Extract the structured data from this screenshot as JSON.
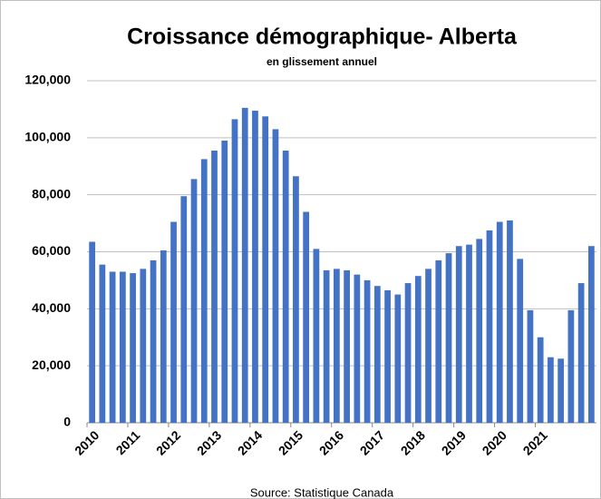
{
  "chart_data": {
    "type": "bar",
    "title": "Croissance démographique- Alberta",
    "subtitle": "en glissement annuel",
    "source": "Source: Statistique Canada",
    "categories": [
      "2010",
      null,
      null,
      null,
      "2011",
      null,
      null,
      null,
      "2012",
      null,
      null,
      null,
      "2013",
      null,
      null,
      null,
      "2014",
      null,
      null,
      null,
      "2015",
      null,
      null,
      null,
      "2016",
      null,
      null,
      null,
      "2017",
      null,
      null,
      null,
      "2018",
      null,
      null,
      null,
      "2019",
      null,
      null,
      null,
      "2020",
      null,
      null,
      null,
      "2021",
      null,
      null,
      null,
      null,
      null
    ],
    "values": [
      63500,
      55500,
      53000,
      53000,
      52500,
      54000,
      57000,
      60500,
      70500,
      79500,
      85500,
      92500,
      95500,
      99000,
      106500,
      110500,
      109500,
      107500,
      103000,
      95500,
      86500,
      74000,
      61000,
      53500,
      54000,
      53500,
      52000,
      50000,
      48000,
      46500,
      45000,
      49000,
      51500,
      54000,
      57000,
      59500,
      62000,
      62500,
      64500,
      67500,
      70500,
      71000,
      57500,
      39500,
      30000,
      23000,
      22500,
      39500,
      49000,
      62000
    ],
    "color": "#4472c4",
    "ylim": [
      0,
      120000
    ],
    "yticks": [
      0,
      {
        "value": 20000,
        "label": "20,000"
      },
      {
        "value": 40000,
        "label": "40,000"
      },
      {
        "value": 60000,
        "label": "60,000"
      },
      {
        "value": 80000,
        "label": "80,000"
      },
      {
        "value": 100000,
        "label": "100,000"
      },
      {
        "value": 120000,
        "label": "120,000"
      }
    ],
    "grid": true
  }
}
